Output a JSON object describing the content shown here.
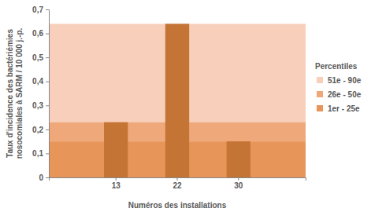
{
  "chart_data": {
    "type": "bar",
    "xlabel": "Numéros des installations",
    "ylabel": [
      "Taux d'incidence des bactériémies",
      "nosocomiales à SARM / 10 000 j.-p."
    ],
    "categories": [
      "13",
      "22",
      "30"
    ],
    "values": [
      0.23,
      0.64,
      0.15
    ],
    "color": "#c47535",
    "ylim": [
      0,
      0.7
    ],
    "yticks": [
      0,
      {
        "value": 0.1,
        "label": "0,1"
      },
      {
        "value": 0.2,
        "label": "0,2"
      },
      {
        "value": 0.3,
        "label": "0,3"
      },
      {
        "value": 0.4,
        "label": "0,4"
      },
      {
        "value": 0.5,
        "label": "0,5"
      },
      {
        "value": 0.6,
        "label": "0,6"
      },
      {
        "value": 0.7,
        "label": "0,7"
      }
    ],
    "legend_title": "Percentiles",
    "bands": [
      {
        "name": "51e - 90e",
        "from": 0.23,
        "to": 0.64,
        "color": "#f8cfbb"
      },
      {
        "name": "26e - 50e",
        "from": 0.15,
        "to": 0.23,
        "color": "#efa87a"
      },
      {
        "name": "1er - 25e",
        "from": 0,
        "to": 0.15,
        "color": "#e8955a"
      }
    ],
    "legend": "right"
  }
}
